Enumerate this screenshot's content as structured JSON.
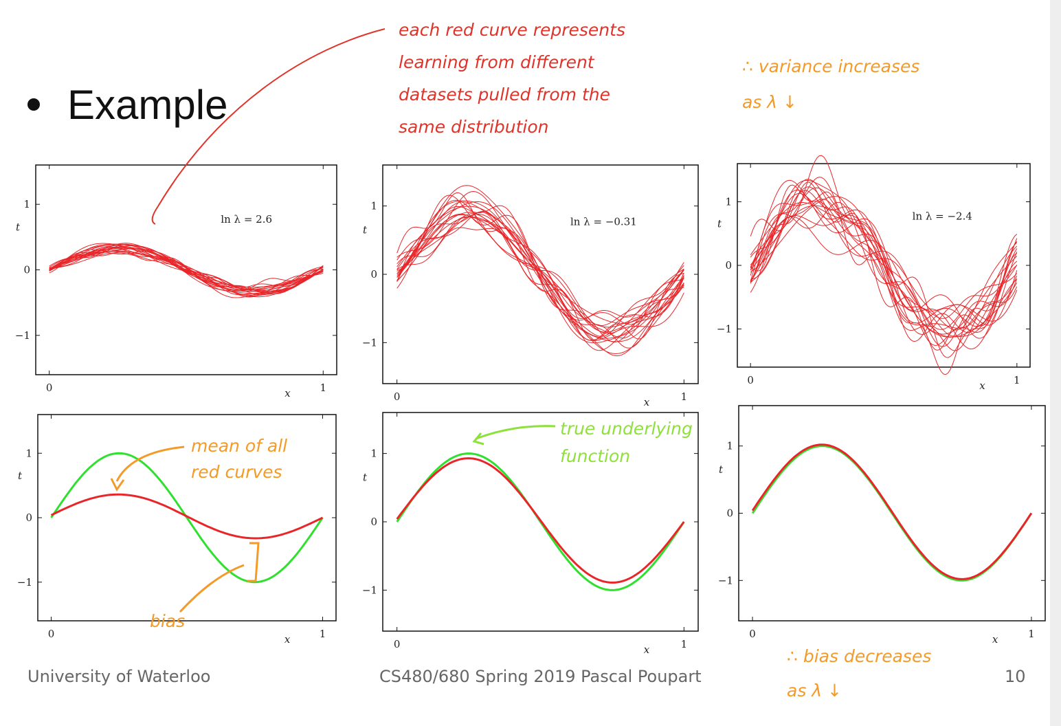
{
  "slide": {
    "bullet_title": "Example",
    "footer_left": "University of Waterloo",
    "footer_center": "CS480/680 Spring 2019 Pascal Poupart",
    "page_number": "10"
  },
  "annotations": {
    "red_note": [
      "each red curve represents",
      "learning from different",
      "datasets pulled from the",
      "same distribution"
    ],
    "variance_note": [
      "∴ variance increases",
      "as λ ↓"
    ],
    "mean_note": [
      "mean of all",
      "red curves"
    ],
    "bias_label": "bias",
    "true_fn_note": [
      "true underlying",
      "function"
    ],
    "bias_decrease_note": [
      "∴ bias decreases",
      "as λ ↓"
    ]
  },
  "colors": {
    "red_curve": "#e8262a",
    "green_curve": "#2fe02f",
    "ink_red": "#e0332a",
    "ink_orange": "#f39a28",
    "ink_green": "#8ee03a"
  },
  "chart_data": [
    {
      "type": "line",
      "panel": "top-left",
      "annotation": "ln λ = 2.6",
      "xlabel": "x",
      "ylabel": "t",
      "xlim": [
        0,
        1
      ],
      "ylim": [
        -1.6,
        1.6
      ],
      "xticks": [
        "0",
        "1"
      ],
      "yticks": [
        "−1",
        "0",
        "1"
      ],
      "series": [
        {
          "values": "20 red fits"
        }
      ],
      "fit_amplitude": 0.33,
      "fit_noise": 0.05
    },
    {
      "type": "line",
      "panel": "top-middle",
      "annotation": "ln λ = −0.31",
      "xlabel": "x",
      "ylabel": "t",
      "xlim": [
        0,
        1
      ],
      "ylim": [
        -1.6,
        1.6
      ],
      "xticks": [
        "0",
        "1"
      ],
      "yticks": [
        "−1",
        "0",
        "1"
      ],
      "fit_amplitude": 0.9,
      "fit_noise": 0.18
    },
    {
      "type": "line",
      "panel": "top-right",
      "annotation": "ln λ = −2.4",
      "xlabel": "x",
      "ylabel": "t",
      "xlim": [
        0,
        1
      ],
      "ylim": [
        -1.6,
        1.6
      ],
      "xticks": [
        "0",
        "1"
      ],
      "yticks": [
        "−1",
        "0",
        "1"
      ],
      "fit_amplitude": 1.0,
      "fit_noise": 0.32
    },
    {
      "type": "line",
      "panel": "bottom-left",
      "xlabel": "x",
      "ylabel": "t",
      "xlim": [
        0,
        1
      ],
      "ylim": [
        -1.6,
        1.6
      ],
      "xticks": [
        "0",
        "1"
      ],
      "yticks": [
        "−1",
        "0",
        "1"
      ],
      "true_amplitude": 1.0,
      "mean_amplitude": 0.33
    },
    {
      "type": "line",
      "panel": "bottom-middle",
      "xlabel": "x",
      "ylabel": "t",
      "xlim": [
        0,
        1
      ],
      "ylim": [
        -1.6,
        1.6
      ],
      "xticks": [
        "0",
        "1"
      ],
      "yticks": [
        "−1",
        "0",
        "1"
      ],
      "true_amplitude": 1.0,
      "mean_amplitude": 0.9
    },
    {
      "type": "line",
      "panel": "bottom-right",
      "xlabel": "x",
      "ylabel": "t",
      "xlim": [
        0,
        1
      ],
      "ylim": [
        -1.6,
        1.6
      ],
      "xticks": [
        "0",
        "1"
      ],
      "yticks": [
        "−1",
        "0",
        "1"
      ],
      "true_amplitude": 1.0,
      "mean_amplitude": 0.99
    }
  ]
}
